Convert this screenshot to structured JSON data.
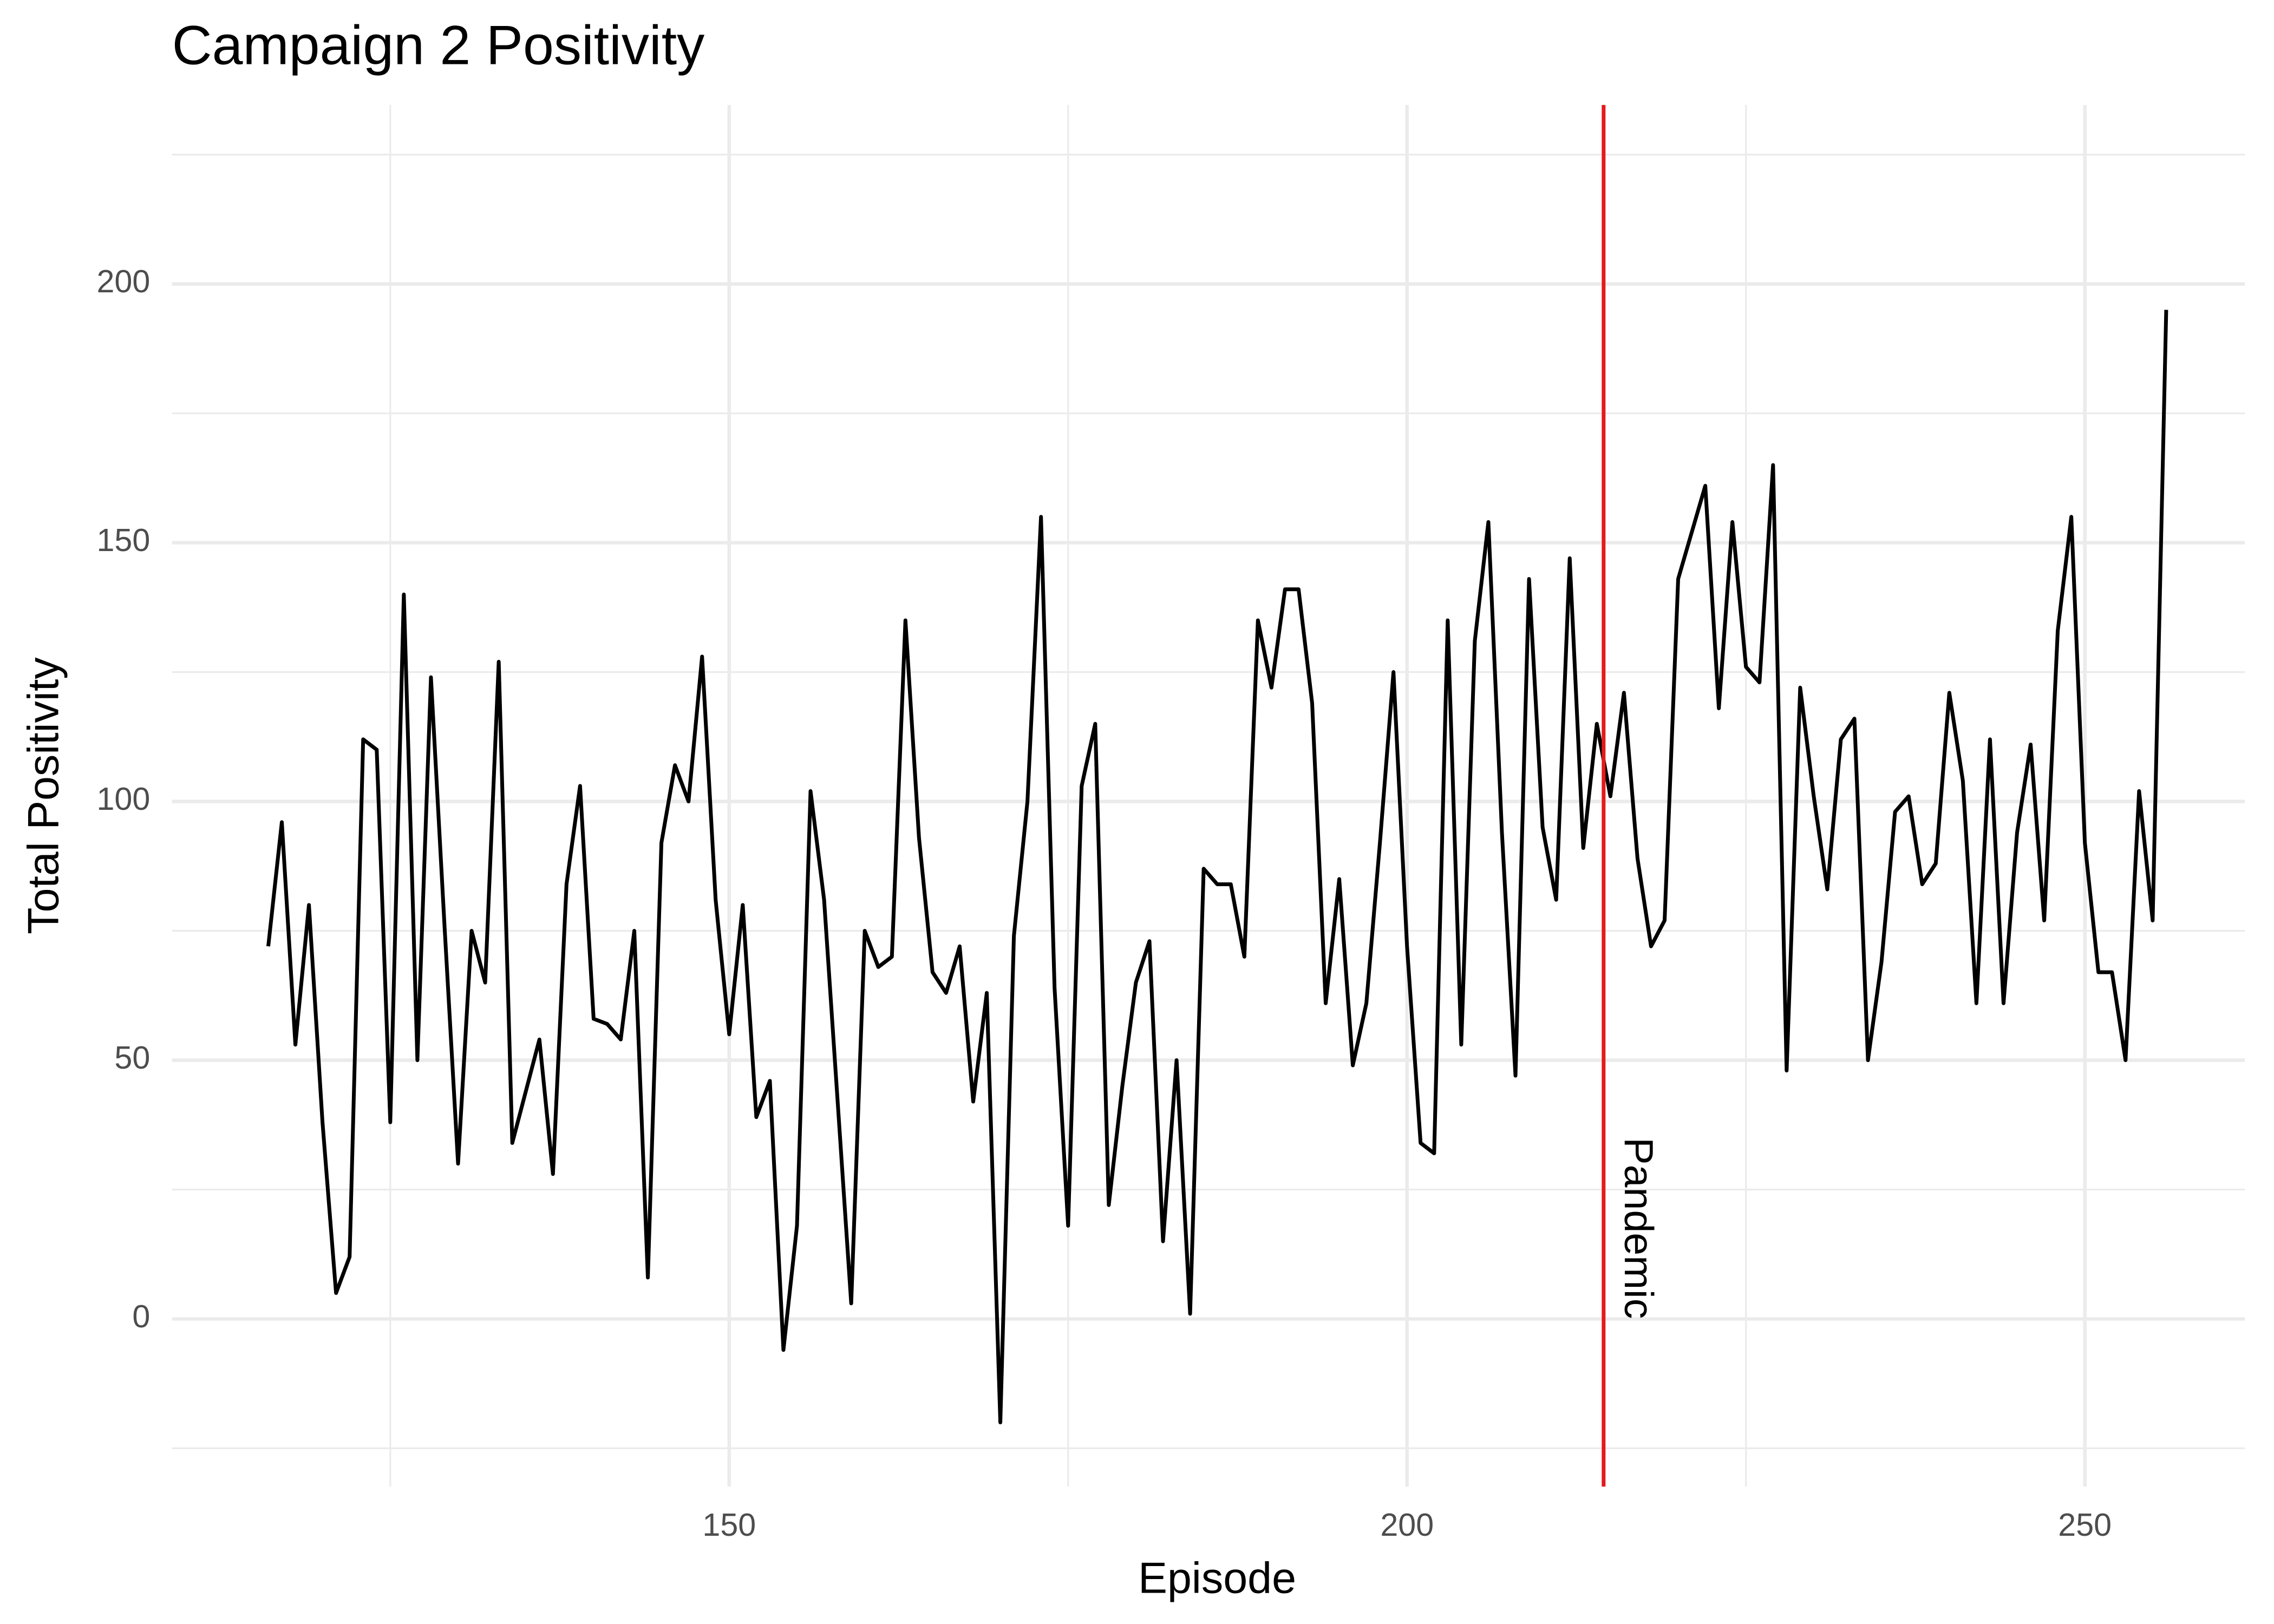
{
  "chart_data": {
    "type": "line",
    "title": "Campaign 2 Positivity",
    "x_label": "Episode",
    "y_label": "Total Positivity",
    "x": [
      116,
      117,
      118,
      119,
      120,
      121,
      122,
      123,
      124,
      125,
      126,
      127,
      128,
      129,
      130,
      131,
      132,
      133,
      134,
      135,
      136,
      137,
      138,
      139,
      140,
      141,
      142,
      143,
      144,
      145,
      146,
      147,
      148,
      149,
      150,
      151,
      152,
      153,
      154,
      155,
      156,
      157,
      158,
      159,
      160,
      161,
      162,
      163,
      164,
      165,
      166,
      167,
      168,
      169,
      170,
      171,
      172,
      173,
      174,
      175,
      176,
      177,
      178,
      179,
      180,
      181,
      182,
      183,
      184,
      185,
      186,
      187,
      188,
      189,
      190,
      191,
      192,
      193,
      194,
      195,
      196,
      197,
      198,
      199,
      200,
      201,
      202,
      203,
      204,
      205,
      206,
      207,
      208,
      209,
      210,
      211,
      212,
      213,
      214,
      215,
      216,
      217,
      218,
      219,
      220,
      221,
      222,
      223,
      224,
      225,
      226,
      227,
      228,
      229,
      230,
      231,
      232,
      233,
      234,
      235,
      236,
      237,
      238,
      239,
      240,
      241,
      242,
      243,
      244,
      245,
      246,
      247,
      248,
      249,
      250,
      251,
      252,
      253,
      254,
      255,
      256
    ],
    "series": [
      {
        "name": "Total Positivity",
        "color": "#000000",
        "values": [
          72,
          96,
          53,
          80,
          38,
          5,
          12,
          112,
          110,
          38,
          140,
          50,
          124,
          76,
          30,
          75,
          65,
          127,
          34,
          44,
          54,
          28,
          84,
          103,
          58,
          57,
          54,
          75,
          8,
          92,
          107,
          100,
          128,
          81,
          55,
          80,
          39,
          46,
          -6,
          18,
          102,
          81,
          42,
          3,
          75,
          68,
          70,
          135,
          93,
          67,
          63,
          72,
          42,
          63,
          -20,
          74,
          100,
          155,
          64,
          18,
          103,
          115,
          22,
          45,
          65,
          73,
          15,
          50,
          1,
          87,
          84,
          84,
          70,
          135,
          122,
          141,
          141,
          119,
          61,
          85,
          49,
          61,
          92,
          125,
          72,
          34,
          32,
          135,
          53,
          131,
          154,
          94,
          47,
          143,
          95,
          81,
          147,
          91,
          115,
          101,
          121,
          89,
          72,
          77,
          143,
          152,
          161,
          118,
          154,
          126,
          123,
          165,
          48,
          122,
          101,
          83,
          112,
          116,
          50,
          69,
          98,
          101,
          84,
          88,
          121,
          104,
          61,
          112,
          61,
          94,
          111,
          77,
          133,
          155,
          92,
          67,
          67,
          50,
          102,
          77,
          195
        ]
      }
    ],
    "vlines": [
      {
        "x": 214.5,
        "label": "Pandemic",
        "color": "#e41a1c"
      }
    ],
    "xlim": [
      108.9,
      261.8
    ],
    "xticks": [
      150,
      200,
      250
    ],
    "xminor_ticks": [
      125,
      175,
      225
    ],
    "ylim": [
      -32.4,
      234.6
    ],
    "yticks": [
      0,
      50,
      100,
      150,
      200
    ],
    "yminor_ticks": [
      -25,
      25,
      75,
      125,
      175,
      225
    ],
    "grid": true
  }
}
